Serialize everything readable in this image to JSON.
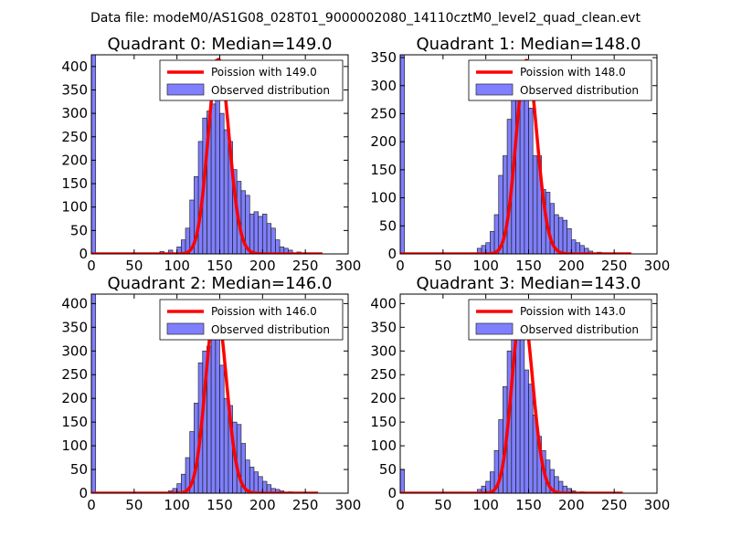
{
  "figure_title": "Data file: modeM0/AS1G08_028T01_9000002080_14110cztM0_level2_quad_clean.evt",
  "chart_data": [
    {
      "type": "bar",
      "title": "Quadrant 0: Median=149.0",
      "xlim": [
        0,
        300
      ],
      "ylim": [
        0,
        425
      ],
      "xticks": [
        0,
        50,
        100,
        150,
        200,
        250,
        300
      ],
      "yticks": [
        0,
        50,
        100,
        150,
        200,
        250,
        300,
        350,
        400
      ],
      "bin_width": 5,
      "poisson_mean": 149.0,
      "legend": [
        "Poission with 149.0",
        "Observed distribution"
      ],
      "legend_position": "upper right",
      "bins": [
        {
          "x": 0,
          "y": 425
        },
        {
          "x": 80,
          "y": 5
        },
        {
          "x": 90,
          "y": 8
        },
        {
          "x": 100,
          "y": 15
        },
        {
          "x": 105,
          "y": 30
        },
        {
          "x": 110,
          "y": 55
        },
        {
          "x": 115,
          "y": 115
        },
        {
          "x": 120,
          "y": 165
        },
        {
          "x": 125,
          "y": 240
        },
        {
          "x": 130,
          "y": 290
        },
        {
          "x": 135,
          "y": 305
        },
        {
          "x": 140,
          "y": 320
        },
        {
          "x": 145,
          "y": 415
        },
        {
          "x": 150,
          "y": 300
        },
        {
          "x": 155,
          "y": 265
        },
        {
          "x": 160,
          "y": 240
        },
        {
          "x": 165,
          "y": 180
        },
        {
          "x": 170,
          "y": 155
        },
        {
          "x": 175,
          "y": 135
        },
        {
          "x": 180,
          "y": 125
        },
        {
          "x": 185,
          "y": 85
        },
        {
          "x": 190,
          "y": 90
        },
        {
          "x": 195,
          "y": 80
        },
        {
          "x": 200,
          "y": 85
        },
        {
          "x": 205,
          "y": 65
        },
        {
          "x": 210,
          "y": 55
        },
        {
          "x": 215,
          "y": 30
        },
        {
          "x": 220,
          "y": 15
        },
        {
          "x": 225,
          "y": 12
        },
        {
          "x": 230,
          "y": 8
        },
        {
          "x": 240,
          "y": 4
        }
      ],
      "poisson_range": [
        0,
        270
      ]
    },
    {
      "type": "bar",
      "title": "Quadrant 1: Median=148.0",
      "xlim": [
        0,
        300
      ],
      "ylim": [
        0,
        355
      ],
      "xticks": [
        0,
        50,
        100,
        150,
        200,
        250,
        300
      ],
      "yticks": [
        0,
        50,
        100,
        150,
        200,
        250,
        300,
        350
      ],
      "bin_width": 5,
      "poisson_mean": 148.0,
      "legend": [
        "Poission with 148.0",
        "Observed distribution"
      ],
      "legend_position": "upper right",
      "bins": [
        {
          "x": 0,
          "y": 355
        },
        {
          "x": 90,
          "y": 10
        },
        {
          "x": 95,
          "y": 15
        },
        {
          "x": 100,
          "y": 20
        },
        {
          "x": 105,
          "y": 40
        },
        {
          "x": 110,
          "y": 70
        },
        {
          "x": 115,
          "y": 140
        },
        {
          "x": 120,
          "y": 175
        },
        {
          "x": 125,
          "y": 240
        },
        {
          "x": 130,
          "y": 300
        },
        {
          "x": 135,
          "y": 310
        },
        {
          "x": 140,
          "y": 330
        },
        {
          "x": 145,
          "y": 345
        },
        {
          "x": 150,
          "y": 260
        },
        {
          "x": 155,
          "y": 175
        },
        {
          "x": 160,
          "y": 175
        },
        {
          "x": 165,
          "y": 115
        },
        {
          "x": 170,
          "y": 110
        },
        {
          "x": 175,
          "y": 90
        },
        {
          "x": 180,
          "y": 70
        },
        {
          "x": 185,
          "y": 65
        },
        {
          "x": 190,
          "y": 60
        },
        {
          "x": 195,
          "y": 45
        },
        {
          "x": 200,
          "y": 25
        },
        {
          "x": 205,
          "y": 20
        },
        {
          "x": 210,
          "y": 15
        },
        {
          "x": 215,
          "y": 10
        },
        {
          "x": 220,
          "y": 5
        },
        {
          "x": 230,
          "y": 3
        }
      ],
      "poisson_range": [
        0,
        270
      ]
    },
    {
      "type": "bar",
      "title": "Quadrant 2: Median=146.0",
      "xlim": [
        0,
        300
      ],
      "ylim": [
        0,
        420
      ],
      "xticks": [
        0,
        50,
        100,
        150,
        200,
        250,
        300
      ],
      "yticks": [
        0,
        50,
        100,
        150,
        200,
        250,
        300,
        350,
        400
      ],
      "bin_width": 5,
      "poisson_mean": 146.0,
      "legend": [
        "Poission with 146.0",
        "Observed distribution"
      ],
      "legend_position": "upper right",
      "bins": [
        {
          "x": 0,
          "y": 420
        },
        {
          "x": 90,
          "y": 5
        },
        {
          "x": 95,
          "y": 10
        },
        {
          "x": 100,
          "y": 20
        },
        {
          "x": 105,
          "y": 40
        },
        {
          "x": 110,
          "y": 75
        },
        {
          "x": 115,
          "y": 130
        },
        {
          "x": 120,
          "y": 190
        },
        {
          "x": 125,
          "y": 275
        },
        {
          "x": 130,
          "y": 300
        },
        {
          "x": 135,
          "y": 310
        },
        {
          "x": 140,
          "y": 380
        },
        {
          "x": 145,
          "y": 395
        },
        {
          "x": 150,
          "y": 270
        },
        {
          "x": 155,
          "y": 200
        },
        {
          "x": 160,
          "y": 185
        },
        {
          "x": 165,
          "y": 150
        },
        {
          "x": 170,
          "y": 145
        },
        {
          "x": 175,
          "y": 105
        },
        {
          "x": 180,
          "y": 70
        },
        {
          "x": 185,
          "y": 55
        },
        {
          "x": 190,
          "y": 45
        },
        {
          "x": 195,
          "y": 35
        },
        {
          "x": 200,
          "y": 25
        },
        {
          "x": 205,
          "y": 18
        },
        {
          "x": 210,
          "y": 10
        },
        {
          "x": 215,
          "y": 8
        },
        {
          "x": 220,
          "y": 5
        },
        {
          "x": 230,
          "y": 3
        }
      ],
      "poisson_range": [
        0,
        265
      ]
    },
    {
      "type": "bar",
      "title": "Quadrant 3: Median=143.0",
      "xlim": [
        0,
        300
      ],
      "ylim": [
        0,
        420
      ],
      "xticks": [
        0,
        50,
        100,
        150,
        200,
        250,
        300
      ],
      "yticks": [
        0,
        50,
        100,
        150,
        200,
        250,
        300,
        350,
        400
      ],
      "bin_width": 5,
      "poisson_mean": 143.0,
      "legend": [
        "Poission with 143.0",
        "Observed distribution"
      ],
      "legend_position": "upper right",
      "bins": [
        {
          "x": 0,
          "y": 50
        },
        {
          "x": 90,
          "y": 8
        },
        {
          "x": 95,
          "y": 15
        },
        {
          "x": 100,
          "y": 25
        },
        {
          "x": 105,
          "y": 45
        },
        {
          "x": 110,
          "y": 90
        },
        {
          "x": 115,
          "y": 155
        },
        {
          "x": 120,
          "y": 225
        },
        {
          "x": 125,
          "y": 300
        },
        {
          "x": 130,
          "y": 380
        },
        {
          "x": 135,
          "y": 395
        },
        {
          "x": 140,
          "y": 335
        },
        {
          "x": 145,
          "y": 260
        },
        {
          "x": 150,
          "y": 230
        },
        {
          "x": 155,
          "y": 165
        },
        {
          "x": 160,
          "y": 120
        },
        {
          "x": 165,
          "y": 90
        },
        {
          "x": 170,
          "y": 70
        },
        {
          "x": 175,
          "y": 50
        },
        {
          "x": 180,
          "y": 35
        },
        {
          "x": 185,
          "y": 25
        },
        {
          "x": 190,
          "y": 15
        },
        {
          "x": 195,
          "y": 10
        },
        {
          "x": 200,
          "y": 5
        },
        {
          "x": 210,
          "y": 3
        }
      ],
      "poisson_range": [
        0,
        260
      ]
    }
  ]
}
